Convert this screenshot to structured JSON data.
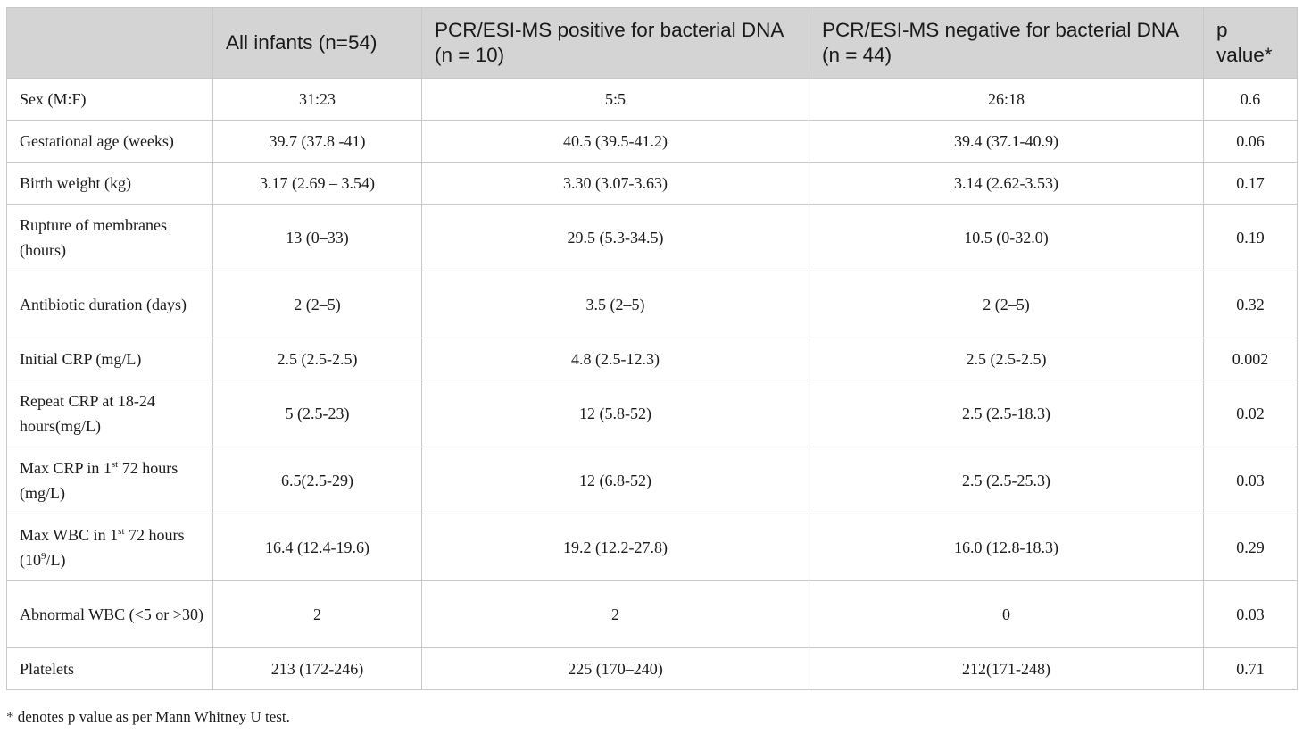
{
  "table": {
    "headers": [
      "",
      "All infants (n=54)",
      "PCR/ESI-MS positive for bacterial DNA (n = 10)",
      "PCR/ESI-MS negative for bacterial DNA (n = 44)",
      "p value*"
    ],
    "rows": [
      {
        "label": "Sex (M:F)",
        "all": "31:23",
        "positive": "5:5",
        "negative": "26:18",
        "p": "0.6"
      },
      {
        "label": "Gestational age (weeks)",
        "all": "39.7 (37.8 -41)",
        "positive": "40.5 (39.5-41.2)",
        "negative": "39.4 (37.1-40.9)",
        "p": "0.06"
      },
      {
        "label": "Birth weight (kg)",
        "all": "3.17 (2.69 – 3.54)",
        "positive": "3.30 (3.07-3.63)",
        "negative": "3.14 (2.62-3.53)",
        "p": "0.17"
      },
      {
        "label": "Rupture of membranes (hours)",
        "all": "13 (0–33)",
        "positive": "29.5 (5.3-34.5)",
        "negative": "10.5 (0-32.0)",
        "p": "0.19"
      },
      {
        "label": "Antibiotic duration (days)",
        "all": "2 (2–5)",
        "positive": "3.5 (2–5)",
        "negative": "2 (2–5)",
        "p": "0.32"
      },
      {
        "label": "Initial CRP (mg/L)",
        "all": "2.5 (2.5-2.5)",
        "positive": "4.8 (2.5-12.3)",
        "negative": "2.5 (2.5-2.5)",
        "p": "0.002"
      },
      {
        "label": "Repeat CRP at 18-24 hours(mg/L)",
        "all": "5 (2.5-23)",
        "positive": "12 (5.8-52)",
        "negative": "2.5 (2.5-18.3)",
        "p": "0.02"
      },
      {
        "label_pre": "Max CRP in 1",
        "label_sup": "st",
        "label_post": " 72 hours (mg/L)",
        "all": "6.5(2.5-29)",
        "positive": "12 (6.8-52)",
        "negative": "2.5 (2.5-25.3)",
        "p": "0.03"
      },
      {
        "label_pre": "Max WBC in 1",
        "label_sup": "st",
        "label_mid": " 72 hours (10",
        "label_sup2": "9",
        "label_post": "/L)",
        "all": "16.4 (12.4-19.6)",
        "positive": "19.2 (12.2-27.8)",
        "negative": "16.0 (12.8-18.3)",
        "p": "0.29"
      },
      {
        "label": "Abnormal WBC (<5 or >30)",
        "all": "2",
        "positive": "2",
        "negative": "0",
        "p": "0.03"
      },
      {
        "label": "Platelets",
        "all": "213 (172-246)",
        "positive": "225 (170–240)",
        "negative": "212(171-248)",
        "p": "0.71"
      }
    ]
  },
  "footnote": "* denotes p value as per Mann Whitney U test."
}
